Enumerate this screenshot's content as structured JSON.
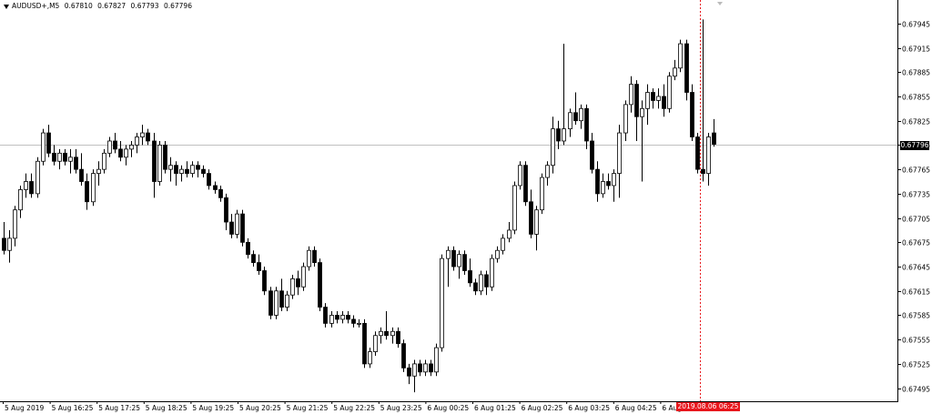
{
  "header": {
    "symbol_timeframe": "AUDUSD+,M5",
    "open": "0.67810",
    "high": "0.67827",
    "low": "0.67793",
    "close": "0.67796"
  },
  "colors": {
    "background": "#ffffff",
    "axis": "#000000",
    "bid_line": "#c0c0c0",
    "crosshair": "#e8171d",
    "bull_candle": "#ffffff",
    "bear_candle": "#000000"
  },
  "price_tag": "0.67796",
  "time_tag": "2019.08.06 06:25",
  "chart_data": {
    "type": "candlestick",
    "title": "AUDUSD+,M5",
    "timeframe": "M5",
    "ylim": [
      0.6748,
      0.67965
    ],
    "y_ticks": [
      "0.67945",
      "0.67915",
      "0.67885",
      "0.67855",
      "0.67825",
      "0.67795",
      "0.67765",
      "0.67735",
      "0.67705",
      "0.67675",
      "0.67645",
      "0.67615",
      "0.67585",
      "0.67555",
      "0.67525",
      "0.67495"
    ],
    "x_tick_labels": [
      "5 Aug 2019",
      "5 Aug 16:25",
      "5 Aug 17:25",
      "5 Aug 18:25",
      "5 Aug 19:25",
      "5 Aug 20:25",
      "5 Aug 21:25",
      "5 Aug 22:25",
      "5 Aug 23:25",
      "6 Aug 00:25",
      "6 Aug 01:25",
      "6 Aug 02:25",
      "6 Aug 03:25",
      "6 Aug 04:25",
      "6 Aug",
      "25"
    ],
    "bid_price": 0.67796,
    "grid": false,
    "candles": [
      {
        "o": 0.6768,
        "h": 0.677,
        "l": 0.6766,
        "c": 0.67665
      },
      {
        "o": 0.67665,
        "h": 0.6769,
        "l": 0.6765,
        "c": 0.6768
      },
      {
        "o": 0.6768,
        "h": 0.6772,
        "l": 0.6767,
        "c": 0.67715
      },
      {
        "o": 0.67715,
        "h": 0.67745,
        "l": 0.67705,
        "c": 0.6774
      },
      {
        "o": 0.6774,
        "h": 0.6776,
        "l": 0.6773,
        "c": 0.6775
      },
      {
        "o": 0.6775,
        "h": 0.6776,
        "l": 0.6773,
        "c": 0.67735
      },
      {
        "o": 0.67735,
        "h": 0.6778,
        "l": 0.6773,
        "c": 0.67775
      },
      {
        "o": 0.67775,
        "h": 0.67815,
        "l": 0.6777,
        "c": 0.6781
      },
      {
        "o": 0.6781,
        "h": 0.6782,
        "l": 0.6778,
        "c": 0.67785
      },
      {
        "o": 0.67785,
        "h": 0.67795,
        "l": 0.6777,
        "c": 0.67775
      },
      {
        "o": 0.67775,
        "h": 0.6779,
        "l": 0.67765,
        "c": 0.67785
      },
      {
        "o": 0.67785,
        "h": 0.6779,
        "l": 0.6777,
        "c": 0.67775
      },
      {
        "o": 0.67775,
        "h": 0.6779,
        "l": 0.6776,
        "c": 0.6778
      },
      {
        "o": 0.6778,
        "h": 0.6779,
        "l": 0.6776,
        "c": 0.67765
      },
      {
        "o": 0.67765,
        "h": 0.67785,
        "l": 0.67745,
        "c": 0.6775
      },
      {
        "o": 0.6775,
        "h": 0.6776,
        "l": 0.67715,
        "c": 0.67725
      },
      {
        "o": 0.67725,
        "h": 0.67765,
        "l": 0.6772,
        "c": 0.6776
      },
      {
        "o": 0.6776,
        "h": 0.67775,
        "l": 0.67745,
        "c": 0.67765
      },
      {
        "o": 0.67765,
        "h": 0.6779,
        "l": 0.6776,
        "c": 0.67785
      },
      {
        "o": 0.67785,
        "h": 0.67805,
        "l": 0.6778,
        "c": 0.678
      },
      {
        "o": 0.678,
        "h": 0.6781,
        "l": 0.67785,
        "c": 0.6779
      },
      {
        "o": 0.6779,
        "h": 0.678,
        "l": 0.67775,
        "c": 0.6778
      },
      {
        "o": 0.6778,
        "h": 0.67795,
        "l": 0.6777,
        "c": 0.6779
      },
      {
        "o": 0.6779,
        "h": 0.678,
        "l": 0.6778,
        "c": 0.67795
      },
      {
        "o": 0.67795,
        "h": 0.6781,
        "l": 0.67785,
        "c": 0.67805
      },
      {
        "o": 0.67805,
        "h": 0.6782,
        "l": 0.67795,
        "c": 0.6781
      },
      {
        "o": 0.6781,
        "h": 0.67815,
        "l": 0.67795,
        "c": 0.678
      },
      {
        "o": 0.678,
        "h": 0.6781,
        "l": 0.6773,
        "c": 0.6775
      },
      {
        "o": 0.6775,
        "h": 0.678,
        "l": 0.67745,
        "c": 0.67795
      },
      {
        "o": 0.67795,
        "h": 0.678,
        "l": 0.6776,
        "c": 0.67765
      },
      {
        "o": 0.67765,
        "h": 0.6778,
        "l": 0.6775,
        "c": 0.6777
      },
      {
        "o": 0.6777,
        "h": 0.67775,
        "l": 0.67745,
        "c": 0.6776
      },
      {
        "o": 0.6776,
        "h": 0.6777,
        "l": 0.6775,
        "c": 0.67765
      },
      {
        "o": 0.67765,
        "h": 0.67775,
        "l": 0.67755,
        "c": 0.6776
      },
      {
        "o": 0.6776,
        "h": 0.67775,
        "l": 0.67755,
        "c": 0.6777
      },
      {
        "o": 0.6777,
        "h": 0.67775,
        "l": 0.67755,
        "c": 0.67765
      },
      {
        "o": 0.67765,
        "h": 0.6777,
        "l": 0.67755,
        "c": 0.6776
      },
      {
        "o": 0.6776,
        "h": 0.67765,
        "l": 0.6774,
        "c": 0.67745
      },
      {
        "o": 0.67745,
        "h": 0.6775,
        "l": 0.67735,
        "c": 0.6774
      },
      {
        "o": 0.6774,
        "h": 0.67745,
        "l": 0.67725,
        "c": 0.6773
      },
      {
        "o": 0.6773,
        "h": 0.67735,
        "l": 0.6769,
        "c": 0.677
      },
      {
        "o": 0.677,
        "h": 0.6771,
        "l": 0.6768,
        "c": 0.67685
      },
      {
        "o": 0.67685,
        "h": 0.67715,
        "l": 0.6768,
        "c": 0.6771
      },
      {
        "o": 0.6771,
        "h": 0.67715,
        "l": 0.6767,
        "c": 0.67675
      },
      {
        "o": 0.67675,
        "h": 0.6768,
        "l": 0.67655,
        "c": 0.6766
      },
      {
        "o": 0.6766,
        "h": 0.67665,
        "l": 0.67645,
        "c": 0.6765
      },
      {
        "o": 0.6765,
        "h": 0.6766,
        "l": 0.67635,
        "c": 0.6764
      },
      {
        "o": 0.6764,
        "h": 0.67645,
        "l": 0.6761,
        "c": 0.67615
      },
      {
        "o": 0.67615,
        "h": 0.6762,
        "l": 0.6758,
        "c": 0.67585
      },
      {
        "o": 0.67585,
        "h": 0.6762,
        "l": 0.6758,
        "c": 0.67615
      },
      {
        "o": 0.67615,
        "h": 0.6763,
        "l": 0.6759,
        "c": 0.67595
      },
      {
        "o": 0.67595,
        "h": 0.67615,
        "l": 0.6759,
        "c": 0.6761
      },
      {
        "o": 0.6761,
        "h": 0.67635,
        "l": 0.67605,
        "c": 0.6763
      },
      {
        "o": 0.6763,
        "h": 0.6764,
        "l": 0.6761,
        "c": 0.6762
      },
      {
        "o": 0.6762,
        "h": 0.6765,
        "l": 0.67615,
        "c": 0.67645
      },
      {
        "o": 0.67645,
        "h": 0.6767,
        "l": 0.6764,
        "c": 0.67665
      },
      {
        "o": 0.67665,
        "h": 0.6767,
        "l": 0.67645,
        "c": 0.6765
      },
      {
        "o": 0.6765,
        "h": 0.67655,
        "l": 0.6759,
        "c": 0.67595
      },
      {
        "o": 0.67595,
        "h": 0.676,
        "l": 0.6757,
        "c": 0.67575
      },
      {
        "o": 0.67575,
        "h": 0.6759,
        "l": 0.6757,
        "c": 0.67585
      },
      {
        "o": 0.67585,
        "h": 0.6759,
        "l": 0.67575,
        "c": 0.6758
      },
      {
        "o": 0.6758,
        "h": 0.6759,
        "l": 0.67575,
        "c": 0.67585
      },
      {
        "o": 0.67585,
        "h": 0.6759,
        "l": 0.67575,
        "c": 0.6758
      },
      {
        "o": 0.6758,
        "h": 0.67585,
        "l": 0.6757,
        "c": 0.67575
      },
      {
        "o": 0.67575,
        "h": 0.6758,
        "l": 0.6757,
        "c": 0.67575
      },
      {
        "o": 0.67575,
        "h": 0.6758,
        "l": 0.6752,
        "c": 0.67525
      },
      {
        "o": 0.67525,
        "h": 0.67545,
        "l": 0.6752,
        "c": 0.6754
      },
      {
        "o": 0.6754,
        "h": 0.67565,
        "l": 0.67535,
        "c": 0.6756
      },
      {
        "o": 0.6756,
        "h": 0.6757,
        "l": 0.6755,
        "c": 0.67565
      },
      {
        "o": 0.67565,
        "h": 0.6759,
        "l": 0.67555,
        "c": 0.6756
      },
      {
        "o": 0.6756,
        "h": 0.6757,
        "l": 0.6755,
        "c": 0.67565
      },
      {
        "o": 0.67565,
        "h": 0.6757,
        "l": 0.67545,
        "c": 0.6755
      },
      {
        "o": 0.6755,
        "h": 0.67555,
        "l": 0.67515,
        "c": 0.6752
      },
      {
        "o": 0.6752,
        "h": 0.67525,
        "l": 0.675,
        "c": 0.6751
      },
      {
        "o": 0.6751,
        "h": 0.6753,
        "l": 0.6749,
        "c": 0.67525
      },
      {
        "o": 0.67525,
        "h": 0.6753,
        "l": 0.6751,
        "c": 0.67515
      },
      {
        "o": 0.67515,
        "h": 0.6753,
        "l": 0.6751,
        "c": 0.67525
      },
      {
        "o": 0.67525,
        "h": 0.6753,
        "l": 0.6751,
        "c": 0.67515
      },
      {
        "o": 0.67515,
        "h": 0.6755,
        "l": 0.6751,
        "c": 0.67545
      },
      {
        "o": 0.67545,
        "h": 0.6766,
        "l": 0.6754,
        "c": 0.67655
      },
      {
        "o": 0.67655,
        "h": 0.6767,
        "l": 0.6762,
        "c": 0.67665
      },
      {
        "o": 0.67665,
        "h": 0.6767,
        "l": 0.6764,
        "c": 0.67645
      },
      {
        "o": 0.67645,
        "h": 0.67665,
        "l": 0.6763,
        "c": 0.6766
      },
      {
        "o": 0.6766,
        "h": 0.67665,
        "l": 0.67635,
        "c": 0.6764
      },
      {
        "o": 0.6764,
        "h": 0.67655,
        "l": 0.6762,
        "c": 0.67625
      },
      {
        "o": 0.67625,
        "h": 0.6763,
        "l": 0.6761,
        "c": 0.67615
      },
      {
        "o": 0.67615,
        "h": 0.6764,
        "l": 0.6761,
        "c": 0.67635
      },
      {
        "o": 0.67635,
        "h": 0.6764,
        "l": 0.6761,
        "c": 0.6762
      },
      {
        "o": 0.6762,
        "h": 0.6766,
        "l": 0.67615,
        "c": 0.67655
      },
      {
        "o": 0.67655,
        "h": 0.6767,
        "l": 0.6765,
        "c": 0.67665
      },
      {
        "o": 0.67665,
        "h": 0.67685,
        "l": 0.6766,
        "c": 0.6768
      },
      {
        "o": 0.6768,
        "h": 0.677,
        "l": 0.67675,
        "c": 0.6769
      },
      {
        "o": 0.6769,
        "h": 0.6775,
        "l": 0.67685,
        "c": 0.67745
      },
      {
        "o": 0.67745,
        "h": 0.67775,
        "l": 0.6774,
        "c": 0.6777
      },
      {
        "o": 0.6777,
        "h": 0.67775,
        "l": 0.6772,
        "c": 0.67725
      },
      {
        "o": 0.67725,
        "h": 0.6774,
        "l": 0.6768,
        "c": 0.67685
      },
      {
        "o": 0.67685,
        "h": 0.6772,
        "l": 0.67665,
        "c": 0.67715
      },
      {
        "o": 0.67715,
        "h": 0.6776,
        "l": 0.6771,
        "c": 0.67755
      },
      {
        "o": 0.67755,
        "h": 0.67775,
        "l": 0.67745,
        "c": 0.6777
      },
      {
        "o": 0.6777,
        "h": 0.6783,
        "l": 0.6776,
        "c": 0.67815
      },
      {
        "o": 0.67815,
        "h": 0.67825,
        "l": 0.6779,
        "c": 0.678
      },
      {
        "o": 0.678,
        "h": 0.6792,
        "l": 0.67795,
        "c": 0.67815
      },
      {
        "o": 0.67815,
        "h": 0.6784,
        "l": 0.67805,
        "c": 0.67835
      },
      {
        "o": 0.67835,
        "h": 0.6786,
        "l": 0.6782,
        "c": 0.67825
      },
      {
        "o": 0.67825,
        "h": 0.67845,
        "l": 0.67815,
        "c": 0.6784
      },
      {
        "o": 0.6784,
        "h": 0.67845,
        "l": 0.6779,
        "c": 0.678
      },
      {
        "o": 0.678,
        "h": 0.6781,
        "l": 0.6776,
        "c": 0.67765
      },
      {
        "o": 0.67765,
        "h": 0.67775,
        "l": 0.67725,
        "c": 0.67735
      },
      {
        "o": 0.67735,
        "h": 0.6776,
        "l": 0.6773,
        "c": 0.6775
      },
      {
        "o": 0.6775,
        "h": 0.6776,
        "l": 0.6774,
        "c": 0.67745
      },
      {
        "o": 0.67745,
        "h": 0.67765,
        "l": 0.67725,
        "c": 0.6776
      },
      {
        "o": 0.6776,
        "h": 0.6782,
        "l": 0.6773,
        "c": 0.6781
      },
      {
        "o": 0.6781,
        "h": 0.6785,
        "l": 0.678,
        "c": 0.67845
      },
      {
        "o": 0.67845,
        "h": 0.6788,
        "l": 0.67835,
        "c": 0.6787
      },
      {
        "o": 0.6787,
        "h": 0.67875,
        "l": 0.678,
        "c": 0.6783
      },
      {
        "o": 0.6783,
        "h": 0.6785,
        "l": 0.6775,
        "c": 0.6784
      },
      {
        "o": 0.6784,
        "h": 0.6787,
        "l": 0.6782,
        "c": 0.6786
      },
      {
        "o": 0.6786,
        "h": 0.67865,
        "l": 0.6784,
        "c": 0.6785
      },
      {
        "o": 0.6785,
        "h": 0.67865,
        "l": 0.6784,
        "c": 0.67855
      },
      {
        "o": 0.67855,
        "h": 0.6787,
        "l": 0.6783,
        "c": 0.6784
      },
      {
        "o": 0.6784,
        "h": 0.67885,
        "l": 0.67835,
        "c": 0.6788
      },
      {
        "o": 0.6788,
        "h": 0.679,
        "l": 0.67875,
        "c": 0.6789
      },
      {
        "o": 0.6789,
        "h": 0.67925,
        "l": 0.67885,
        "c": 0.6792
      },
      {
        "o": 0.6792,
        "h": 0.67925,
        "l": 0.6785,
        "c": 0.6786
      },
      {
        "o": 0.6786,
        "h": 0.6787,
        "l": 0.678,
        "c": 0.67805
      },
      {
        "o": 0.67805,
        "h": 0.6781,
        "l": 0.6776,
        "c": 0.67765
      },
      {
        "o": 0.67765,
        "h": 0.6795,
        "l": 0.6775,
        "c": 0.6776
      },
      {
        "o": 0.6776,
        "h": 0.6781,
        "l": 0.67745,
        "c": 0.67805
      },
      {
        "o": 0.6781,
        "h": 0.67827,
        "l": 0.67793,
        "c": 0.67796
      }
    ]
  }
}
